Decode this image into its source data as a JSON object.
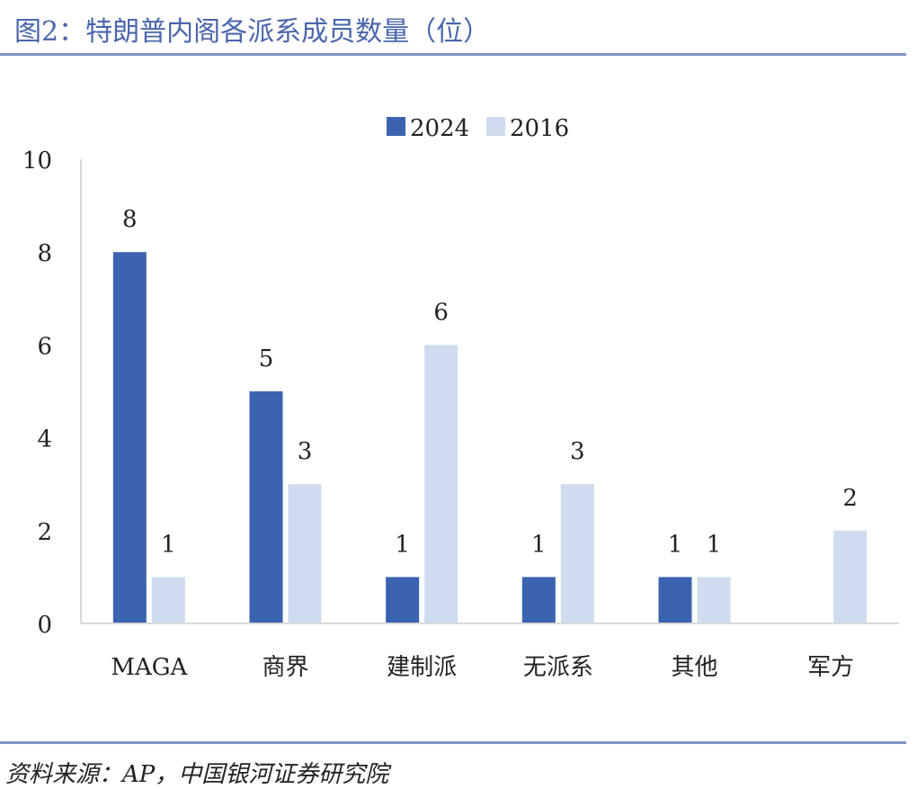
{
  "title": "图2：特朗普内阁各派系成员数量（位）",
  "source": "资料来源：AP，中国银河证券研究院",
  "colors": {
    "series_2024": "#3b63b0",
    "series_2016": "#cfdcef",
    "accent": "#4a66ad"
  },
  "chart_data": {
    "type": "bar",
    "categories": [
      "MAGA",
      "商界",
      "建制派",
      "无派系",
      "其他",
      "军方"
    ],
    "series": [
      {
        "name": "2024",
        "values": [
          8,
          5,
          1,
          1,
          1,
          null
        ]
      },
      {
        "name": "2016",
        "values": [
          1,
          3,
          6,
          3,
          1,
          2
        ]
      }
    ],
    "yticks": [
      "0",
      "2",
      "4",
      "6",
      "8",
      "10"
    ],
    "ylim": [
      0,
      10
    ],
    "grid": false,
    "legend": "top-center",
    "data_labels": true
  }
}
